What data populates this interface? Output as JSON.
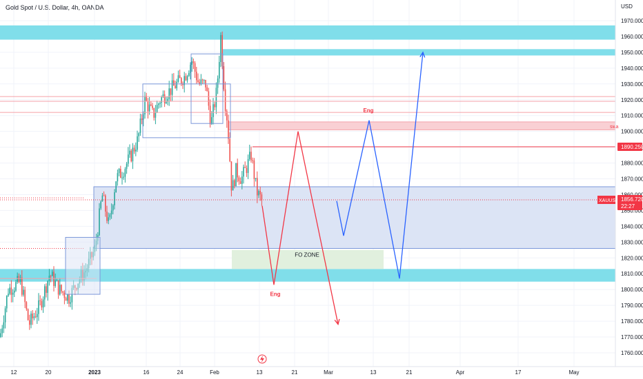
{
  "header": {
    "title": "Gold Spot / U.S. Dollar, 4h, OANDA"
  },
  "chart_data": {
    "type": "candlestick",
    "title": "Gold Spot / U.S. Dollar, 4h, OANDA",
    "y_axis": {
      "unit": "USD",
      "range": [
        1752,
        1975
      ],
      "ticks": [
        1760,
        1770,
        1780,
        1790,
        1800,
        1810,
        1820,
        1830,
        1840,
        1850,
        1860,
        1870,
        1880,
        1890,
        1900,
        1910,
        1920,
        1930,
        1940,
        1950,
        1960,
        1970
      ],
      "tick_labels": [
        "1760.000",
        "1770.000",
        "1780.000",
        "1790.000",
        "1800.000",
        "1810.000",
        "1820.000",
        "1830.000",
        "1840.000",
        "1850.000",
        "1860.000",
        "1870.000",
        "1880.000",
        "1890.000",
        "1900.000",
        "1910.000",
        "1920.000",
        "1930.000",
        "1940.000",
        "1950.000",
        "1960.000",
        "1970.000"
      ]
    },
    "x_axis": {
      "tick_labels": [
        "12",
        "20",
        "2023",
        "16",
        "24",
        "Feb",
        "13",
        "21",
        "Mar",
        "13",
        "21",
        "Apr",
        "17",
        "May"
      ]
    },
    "price_labels": [
      {
        "text": "1890.250",
        "value": 1890.25,
        "color": "#f23645"
      },
      {
        "text": "XAUUSD",
        "value": 1856.72,
        "color": "#f23645"
      },
      {
        "text": "1856.720",
        "value": 1856.72,
        "color": "#f23645"
      },
      {
        "text": "22:27",
        "value": 1856.72,
        "color": "#f23645"
      }
    ],
    "current_price": 1856.72,
    "zones": [
      {
        "name": "top-supply-zone",
        "y_range": [
          1958,
          1967
        ],
        "color": "#80deea"
      },
      {
        "name": "target-zone",
        "y_range": [
          1948,
          1952
        ],
        "color": "#80deea"
      },
      {
        "name": "demand-zone",
        "y_range": [
          1826,
          1865
        ],
        "color": "#dce4f5"
      },
      {
        "name": "bottom-support-zone",
        "y_range": [
          1805,
          1813
        ],
        "color": "#80deea"
      },
      {
        "name": "swap-zone",
        "y_range": [
          1901,
          1906
        ],
        "color": "#f9d0d4"
      },
      {
        "name": "fo-zone",
        "y_range": [
          1813,
          1825
        ],
        "color": "#e1f0de"
      }
    ],
    "annotations": [
      {
        "text": "FO ZONE",
        "color": "#131722"
      },
      {
        "text": "Eng",
        "color": "#f23645"
      },
      {
        "text": "Eng",
        "color": "#f23645"
      },
      {
        "text": "swa",
        "color": "#f23645"
      }
    ],
    "projection_paths": [
      {
        "name": "red-bearish-path",
        "color": "#f23645",
        "points": [
          [
            1853,
            0
          ],
          [
            1803,
            1
          ],
          [
            1900,
            2
          ],
          [
            1778,
            3
          ]
        ]
      },
      {
        "name": "blue-bullish-path",
        "color": "#2962ff",
        "points": [
          [
            1856,
            0
          ],
          [
            1834,
            1
          ],
          [
            1907,
            2
          ],
          [
            1807,
            3
          ],
          [
            1950,
            4
          ]
        ]
      }
    ],
    "candles_description": "Rally from ~1770 mid-December to ~1960 high late January, sharp drop to ~1860 in early February, consolidation near 1860.",
    "colors": {
      "up": "#26a69a",
      "down": "#ef5350",
      "grid": "#f0f3fa"
    }
  }
}
